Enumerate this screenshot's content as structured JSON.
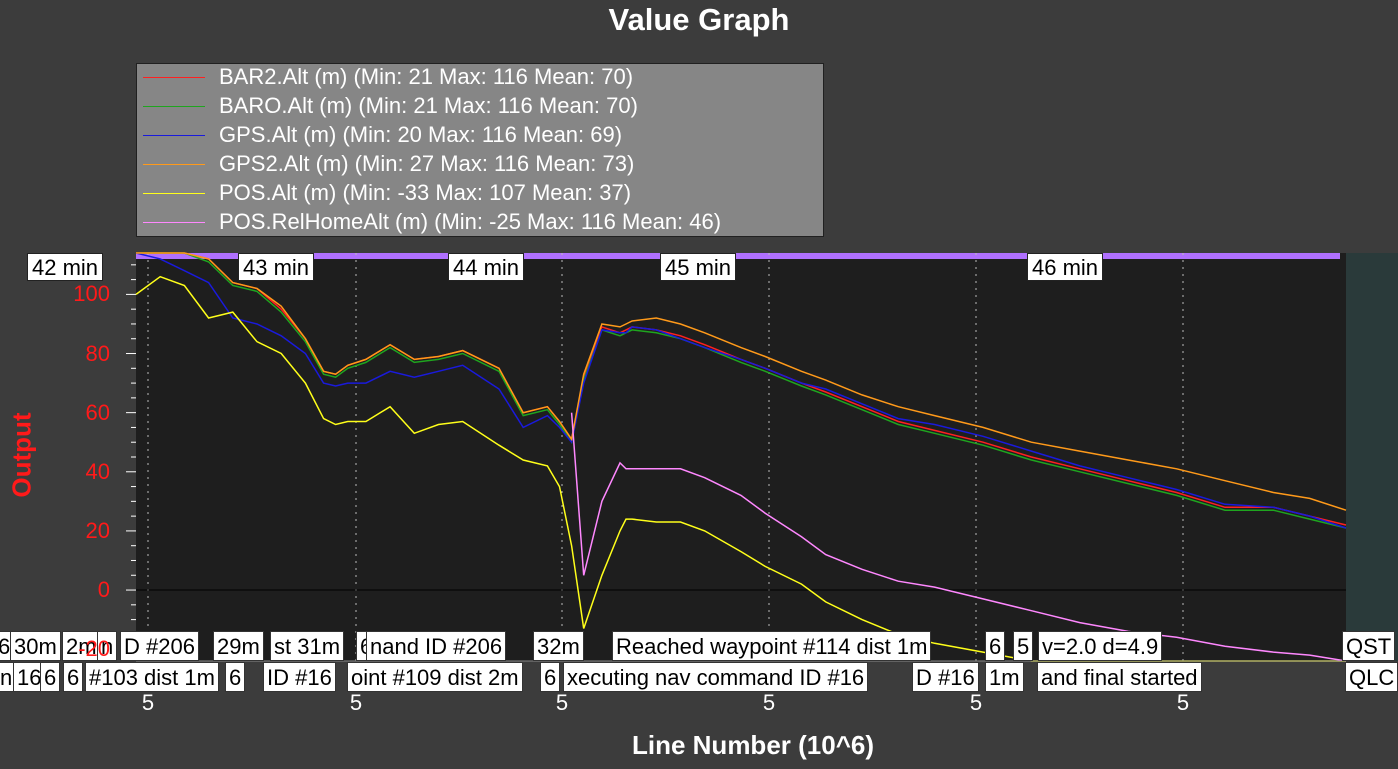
{
  "title": "Value Graph",
  "legend": [
    {
      "label": "BAR2.Alt (m) (Min: 21 Max: 116 Mean: 70)",
      "color": "#ff2020"
    },
    {
      "label": "BARO.Alt (m) (Min: 21 Max: 116 Mean: 70)",
      "color": "#1fa51f"
    },
    {
      "label": "GPS.Alt (m) (Min: 20 Max: 116 Mean: 69)",
      "color": "#1a1adc"
    },
    {
      "label": "GPS2.Alt (m) (Min: 27 Max: 116 Mean: 73)",
      "color": "#ff9a1a"
    },
    {
      "label": "POS.Alt (m) (Min: -33 Max: 107 Mean: 37)",
      "color": "#ffff1a"
    },
    {
      "label": "POS.RelHomeAlt (m) (Min: -25 Max: 116 Mean: 46)",
      "color": "#ff88ff"
    }
  ],
  "time_labels": [
    "42 min",
    "43 min",
    "44 min",
    "45 min",
    "46 min"
  ],
  "messages_row1": [
    "6",
    "30m",
    "2m",
    "n",
    "D #206",
    "29m",
    "st 31m",
    "6",
    "nand ID #206",
    "32m",
    "Reached waypoint #114 dist 1m",
    "6",
    "5",
    "v=2.0 d=4.9",
    "QST"
  ],
  "messages_row2": [
    "n",
    "16",
    "6",
    "6",
    "#103 dist 1m",
    "6",
    "ID #16",
    "oint #109 dist 2m",
    "6",
    "xecuting nav command ID #16",
    "D #16",
    "1m",
    "and final started",
    "QLC"
  ],
  "chart_data": {
    "type": "line",
    "title": "Value Graph",
    "xlabel": "Line Number (10^6)",
    "ylabel": "Output",
    "x_tick_labels": [
      "5",
      "5",
      "5",
      "5",
      "5",
      "5"
    ],
    "y_ticks": [
      -20,
      0,
      20,
      40,
      60,
      80,
      100
    ],
    "ylim": [
      -24,
      114
    ],
    "xlim": [
      0,
      1
    ],
    "grid": true,
    "legend_position": "top-left",
    "x": [
      0.0,
      0.02,
      0.04,
      0.06,
      0.08,
      0.1,
      0.12,
      0.14,
      0.155,
      0.165,
      0.175,
      0.19,
      0.21,
      0.23,
      0.25,
      0.27,
      0.3,
      0.32,
      0.34,
      0.35,
      0.36,
      0.37,
      0.385,
      0.4,
      0.405,
      0.41,
      0.43,
      0.45,
      0.47,
      0.5,
      0.52,
      0.55,
      0.57,
      0.6,
      0.63,
      0.66,
      0.7,
      0.74,
      0.78,
      0.82,
      0.86,
      0.9,
      0.94,
      0.97,
      1.0
    ],
    "series": [
      {
        "name": "BAR2.Alt (m)",
        "color": "#ff2020",
        "values": [
          118,
          116,
          114,
          112,
          104,
          102,
          95,
          85,
          74,
          73,
          76,
          78,
          83,
          78,
          79,
          81,
          75,
          60,
          62,
          57,
          51,
          72,
          89,
          87,
          88,
          89,
          88,
          86,
          83,
          78,
          75,
          70,
          67,
          62,
          57,
          54,
          50,
          45,
          41,
          37,
          33,
          28,
          28,
          25,
          22
        ]
      },
      {
        "name": "BARO.Alt (m)",
        "color": "#1fa51f",
        "values": [
          118,
          116,
          114,
          111,
          103,
          101,
          94,
          84,
          73,
          72,
          75,
          77,
          82,
          77,
          78,
          80,
          74,
          59,
          61,
          56,
          50,
          71,
          88,
          86,
          87,
          88,
          87,
          85,
          82,
          77,
          74,
          69,
          66,
          61,
          56,
          53,
          49,
          44,
          40,
          36,
          32,
          27,
          27,
          24,
          21
        ]
      },
      {
        "name": "GPS.Alt (m)",
        "color": "#1a1adc",
        "values": [
          116,
          112,
          108,
          104,
          92,
          90,
          86,
          80,
          70,
          69,
          70,
          70,
          74,
          72,
          74,
          76,
          68,
          55,
          59,
          55,
          50,
          70,
          88,
          87,
          87,
          89,
          88,
          85,
          82,
          78,
          75,
          70,
          68,
          63,
          58,
          56,
          52,
          47,
          42,
          38,
          34,
          29,
          28,
          25,
          21
        ]
      },
      {
        "name": "GPS2.Alt (m)",
        "color": "#ff9a1a",
        "values": [
          118,
          116,
          114,
          112,
          104,
          102,
          96,
          85,
          74,
          73,
          76,
          78,
          83,
          78,
          79,
          81,
          75,
          60,
          62,
          57,
          51,
          73,
          90,
          89,
          90,
          91,
          92,
          90,
          87,
          82,
          79,
          74,
          71,
          66,
          62,
          59,
          55,
          50,
          47,
          44,
          41,
          37,
          33,
          31,
          27
        ]
      },
      {
        "name": "POS.Alt (m)",
        "color": "#ffff1a",
        "values": [
          100,
          106,
          103,
          92,
          94,
          84,
          80,
          70,
          58,
          56,
          57,
          57,
          62,
          53,
          56,
          57,
          49,
          44,
          42,
          35,
          15,
          -13,
          5,
          20,
          24,
          24,
          23,
          23,
          20,
          13,
          8,
          2,
          -4,
          -10,
          -15,
          -18,
          -21,
          -24,
          -27,
          -30,
          -33,
          -33,
          -33,
          -33,
          -33
        ]
      },
      {
        "name": "POS.RelHomeAlt (m)",
        "color": "#ff88ff",
        "values": [
          116,
          116,
          116,
          116,
          116,
          116,
          116,
          116,
          116,
          116,
          116,
          116,
          116,
          116,
          116,
          116,
          116,
          116,
          116,
          116,
          60,
          5,
          30,
          43,
          41,
          41,
          41,
          41,
          38,
          32,
          26,
          18,
          12,
          7,
          3,
          1,
          -3,
          -7,
          -11,
          -14,
          -16,
          -19,
          -21,
          -22,
          -25
        ]
      }
    ]
  }
}
